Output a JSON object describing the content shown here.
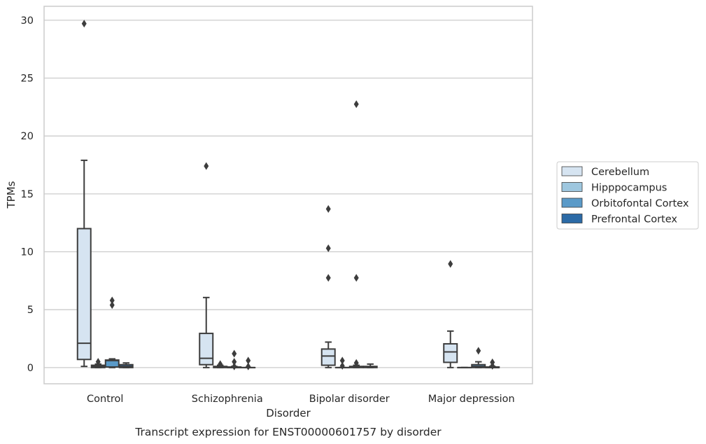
{
  "caption": "Transcript expression for ENST00000601757 by disorder",
  "colors": {
    "grid": "#cccccc",
    "frame": "#cccccc",
    "line": "#3d3d3d",
    "text": "#262626",
    "series": [
      "#d6e4f1",
      "#9ec7df",
      "#5a9ac8",
      "#2b6aa6"
    ]
  },
  "chart_data": {
    "type": "box",
    "title": "",
    "xlabel": "Disorder",
    "ylabel": "TPMs",
    "ylim": [
      -1.4,
      31.2
    ],
    "yticks": [
      0,
      5,
      10,
      15,
      20,
      25,
      30
    ],
    "grid": "horizontal",
    "legend_position": "right",
    "categories": [
      "Control",
      "Schizophrenia",
      "Bipolar disorder",
      "Major depression"
    ],
    "series": [
      {
        "name": "Cerebellum",
        "boxes": [
          {
            "whisker_low": 0.1,
            "q1": 0.7,
            "median": 2.1,
            "q3": 12.0,
            "whisker_high": 17.9,
            "outliers": [
              29.7
            ]
          },
          {
            "whisker_low": 0.0,
            "q1": 0.25,
            "median": 0.8,
            "q3": 2.95,
            "whisker_high": 6.05,
            "outliers": [
              17.4
            ]
          },
          {
            "whisker_low": 0.0,
            "q1": 0.2,
            "median": 1.0,
            "q3": 1.6,
            "whisker_high": 2.2,
            "outliers": [
              13.7,
              10.3,
              7.75
            ]
          },
          {
            "whisker_low": 0.0,
            "q1": 0.45,
            "median": 1.35,
            "q3": 2.05,
            "whisker_high": 3.15,
            "outliers": [
              8.95
            ]
          }
        ]
      },
      {
        "name": "Hipppocampus",
        "boxes": [
          {
            "whisker_low": 0.0,
            "q1": 0.0,
            "median": 0.1,
            "q3": 0.2,
            "whisker_high": 0.3,
            "outliers": [
              0.5
            ]
          },
          {
            "whisker_low": 0.0,
            "q1": 0.0,
            "median": 0.05,
            "q3": 0.1,
            "whisker_high": 0.2,
            "outliers": [
              0.3
            ]
          },
          {
            "whisker_low": 0.0,
            "q1": 0.0,
            "median": 0.0,
            "q3": 0.0,
            "whisker_high": 0.0,
            "outliers": [
              0.6,
              0.15
            ]
          },
          {
            "whisker_low": 0.0,
            "q1": 0.0,
            "median": 0.0,
            "q3": 0.0,
            "whisker_high": 0.0,
            "outliers": []
          }
        ]
      },
      {
        "name": "Orbitofontal Cortex",
        "boxes": [
          {
            "whisker_low": 0.0,
            "q1": 0.05,
            "median": 0.6,
            "q3": 0.65,
            "whisker_high": 0.75,
            "outliers": [
              5.8,
              5.4
            ]
          },
          {
            "whisker_low": 0.0,
            "q1": 0.0,
            "median": 0.0,
            "q3": 0.05,
            "whisker_high": 0.1,
            "outliers": [
              1.2,
              0.5,
              0.1
            ]
          },
          {
            "whisker_low": 0.0,
            "q1": 0.0,
            "median": 0.05,
            "q3": 0.1,
            "whisker_high": 0.2,
            "outliers": [
              22.75,
              7.75,
              0.4
            ]
          },
          {
            "whisker_low": 0.0,
            "q1": 0.0,
            "median": 0.1,
            "q3": 0.25,
            "whisker_high": 0.5,
            "outliers": [
              1.45
            ]
          }
        ]
      },
      {
        "name": "Prefrontal Cortex",
        "boxes": [
          {
            "whisker_low": 0.0,
            "q1": 0.0,
            "median": 0.1,
            "q3": 0.25,
            "whisker_high": 0.4,
            "outliers": []
          },
          {
            "whisker_low": 0.0,
            "q1": 0.0,
            "median": 0.0,
            "q3": 0.0,
            "whisker_high": 0.0,
            "outliers": [
              0.6,
              0.1
            ]
          },
          {
            "whisker_low": 0.0,
            "q1": 0.0,
            "median": 0.05,
            "q3": 0.1,
            "whisker_high": 0.3,
            "outliers": []
          },
          {
            "whisker_low": 0.0,
            "q1": 0.0,
            "median": 0.0,
            "q3": 0.05,
            "whisker_high": 0.1,
            "outliers": [
              0.45,
              0.15
            ]
          }
        ]
      }
    ]
  }
}
